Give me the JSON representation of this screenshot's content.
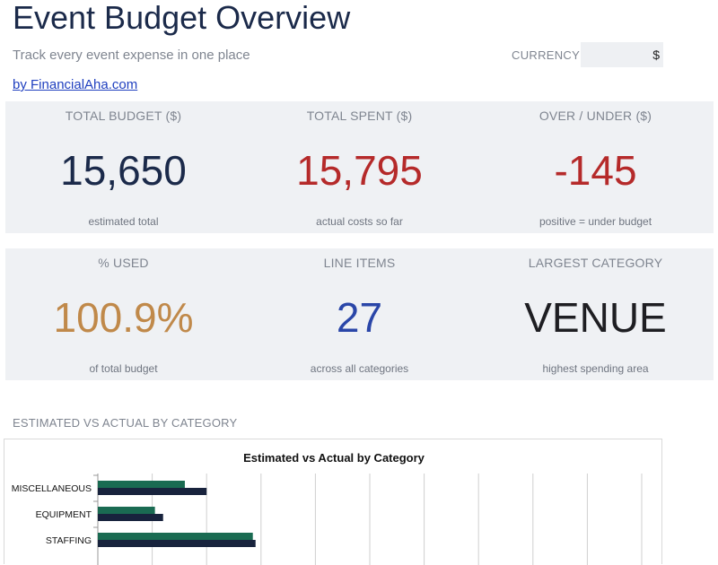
{
  "header": {
    "title": "Event Budget Overview",
    "subtitle": "Track every event expense in one place",
    "link": "by FinancialAha.com",
    "currency_label": "CURRENCY",
    "currency_value": "$"
  },
  "kpis": [
    {
      "label": "TOTAL BUDGET ($)",
      "value": "15,650",
      "note": "estimated total",
      "color": "#1b2a4a"
    },
    {
      "label": "TOTAL SPENT ($)",
      "value": "15,795",
      "note": "actual costs so far",
      "color": "#b52a2a"
    },
    {
      "label": "OVER / UNDER ($)",
      "value": "-145",
      "note": "positive = under budget",
      "color": "#b52a2a"
    },
    {
      "label": "% USED",
      "value": "100.9%",
      "note": "of total budget",
      "color": "#c0894a"
    },
    {
      "label": "LINE ITEMS",
      "value": "27",
      "note": "across all categories",
      "color": "#2a46a8"
    },
    {
      "label": "LARGEST CATEGORY",
      "value": "VENUE",
      "note": "highest spending area",
      "color": "#1e1e22"
    }
  ],
  "section": {
    "chart_heading": "ESTIMATED VS ACTUAL BY CATEGORY"
  },
  "chart_data": {
    "type": "bar",
    "orientation": "horizontal",
    "title": "Estimated vs Actual by Category",
    "categories": [
      "MISCELLANEOUS",
      "EQUIPMENT",
      "STAFFING"
    ],
    "series": [
      {
        "values": [
          1600,
          1050,
          2850
        ],
        "color": "#1a6b52"
      },
      {
        "values": [
          2000,
          1200,
          2900
        ],
        "color": "#18233d"
      }
    ],
    "xlim": [
      0,
      10000
    ],
    "grid": true
  }
}
